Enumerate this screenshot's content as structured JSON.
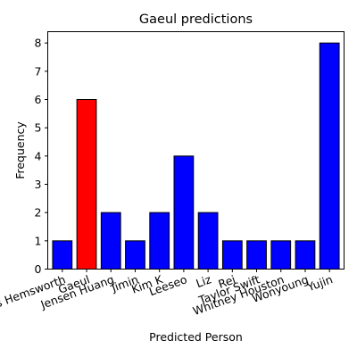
{
  "chart_data": {
    "type": "bar",
    "title": "Gaeul predictions",
    "xlabel": "Predicted Person",
    "ylabel": "Frequency",
    "categories": [
      "Chris Hemsworth",
      "Gaeul",
      "Jensen Huang",
      "Jimin",
      "Kim K",
      "Leeseo",
      "Liz",
      "Rei",
      "Taylor Swift",
      "Whitney Houston",
      "Wonyoung",
      "Yujin"
    ],
    "values": [
      1,
      6,
      2,
      1,
      2,
      4,
      2,
      1,
      1,
      1,
      1,
      8
    ],
    "highlight_index": 1,
    "colors": {
      "default": "#0000ff",
      "highlight": "#ff0000",
      "edge": "#000000"
    },
    "yticks": [
      0,
      1,
      2,
      3,
      4,
      5,
      6,
      7,
      8
    ],
    "ylim": [
      0,
      8.4
    ],
    "grid": false,
    "xtick_rotation_deg": -20
  }
}
